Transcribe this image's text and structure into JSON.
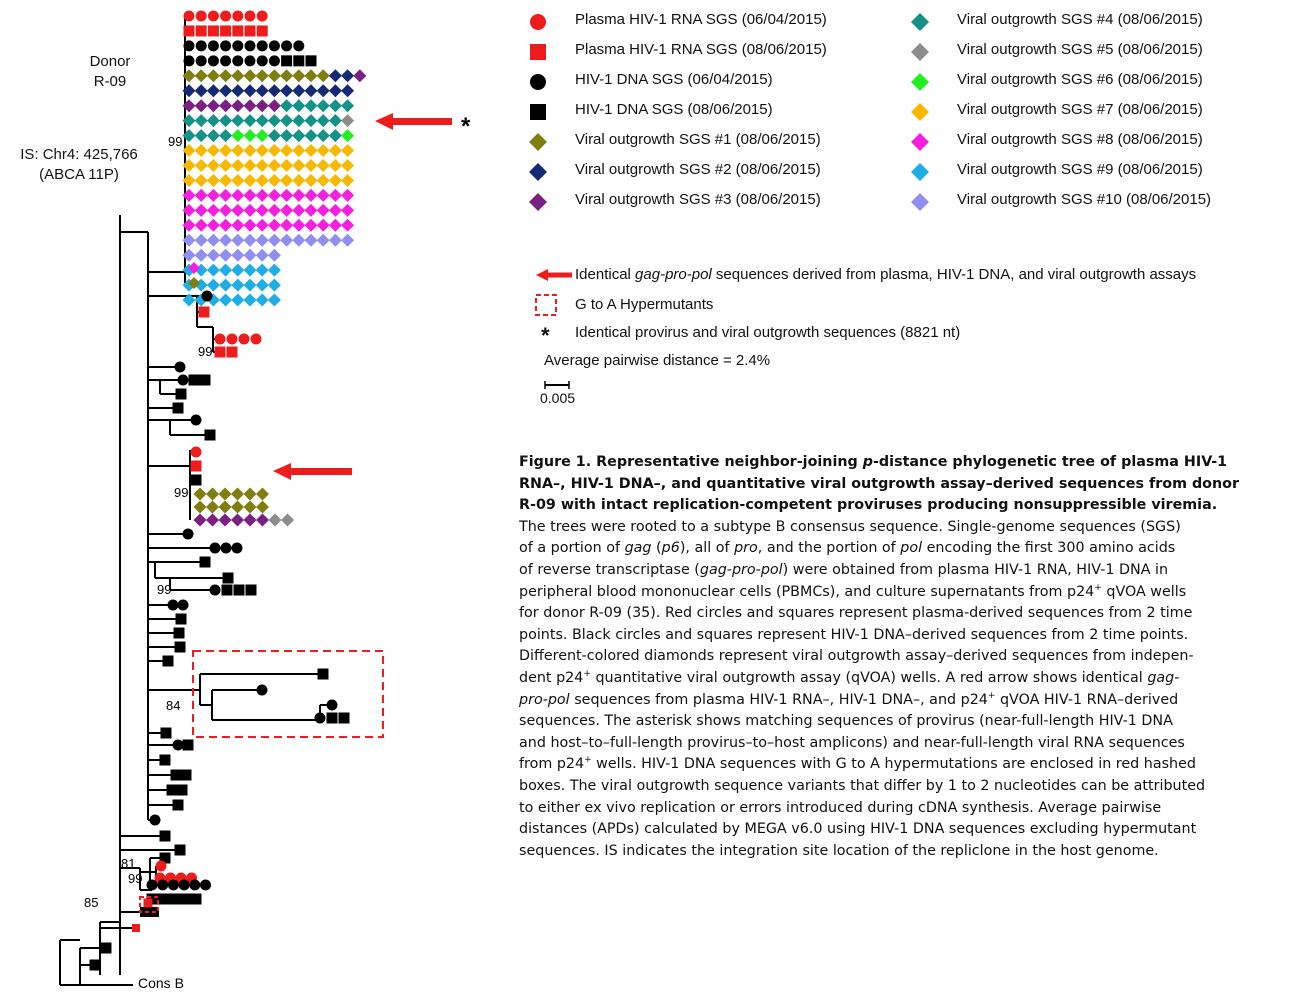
{
  "tree": {
    "donor_line1": "Donor",
    "donor_line2": "R-09",
    "is_line1": "IS: Chr4: 425,766",
    "is_line2": "(ABCA 11P)",
    "outgroup_label": "Cons B",
    "asterisk": "*",
    "bootstraps": [
      "99",
      "99",
      "99",
      "99",
      "84",
      "81",
      "99",
      "85"
    ]
  },
  "legend": {
    "colors": {
      "red": "#ee1c1c",
      "black": "#000000",
      "olive": "#7f7f0f",
      "navy": "#142a74",
      "purple": "#7b1f83",
      "teal": "#139387",
      "gray": "#8c8c8c",
      "green": "#22ee22",
      "orange": "#f8b800",
      "magenta": "#f41fdf",
      "cyan": "#1eaee6",
      "lavender": "#8f8ff2"
    },
    "items": [
      {
        "label": "Plasma HIV-1 RNA SGS (06/04/2015)",
        "symbol": "circle",
        "color": "#ee1c1c"
      },
      {
        "label": "Plasma HIV-1 RNA SGS (08/06/2015)",
        "symbol": "square",
        "color": "#ee1c1c"
      },
      {
        "label": "HIV-1 DNA SGS (06/04/2015)",
        "symbol": "circle",
        "color": "#000000"
      },
      {
        "label": "HIV-1 DNA SGS (08/06/2015)",
        "symbol": "square",
        "color": "#000000"
      },
      {
        "label": "Viral outgrowth SGS #1 (08/06/2015)",
        "symbol": "diamond",
        "color": "#7f7f0f"
      },
      {
        "label": "Viral outgrowth SGS #2 (08/06/2015)",
        "symbol": "diamond",
        "color": "#142a74"
      },
      {
        "label": "Viral outgrowth SGS #3 (08/06/2015)",
        "symbol": "diamond",
        "color": "#7b1f83"
      },
      {
        "label": "Viral outgrowth SGS #4 (08/06/2015)",
        "symbol": "diamond",
        "color": "#139387"
      },
      {
        "label": "Viral outgrowth SGS #5 (08/06/2015)",
        "symbol": "diamond",
        "color": "#8c8c8c"
      },
      {
        "label": "Viral outgrowth SGS #6 (08/06/2015)",
        "symbol": "diamond",
        "color": "#22ee22"
      },
      {
        "label": "Viral outgrowth SGS #7 (08/06/2015)",
        "symbol": "diamond",
        "color": "#f8b800"
      },
      {
        "label": "Viral outgrowth SGS #8 (08/06/2015)",
        "symbol": "diamond",
        "color": "#f41fdf"
      },
      {
        "label": "Viral outgrowth SGS #9 (08/06/2015)",
        "symbol": "diamond",
        "color": "#1eaee6"
      },
      {
        "label": "Viral outgrowth SGS #10 (08/06/2015)",
        "symbol": "diamond",
        "color": "#8f8ff2"
      }
    ],
    "arrow_text_1": "Identical ",
    "arrow_text_italic": "gag-pro-pol",
    "arrow_text_2": " sequences derived from plasma, HIV-1 DNA, and viral outgrowth assays",
    "hypermutant_text": "G to A Hypermutants",
    "asterisk_text": "Identical provirus and viral outgrowth sequences (8821 nt)",
    "apd_text": "Average pairwise distance = 2.4%",
    "scale_label": "0.005"
  },
  "caption": {
    "title_1": "Figure 1. Representative neighbor-joining ",
    "title_italic": "p",
    "title_2": "-distance phylogenetic tree of plasma HIV-1",
    "title_line2": "RNA–, HIV-1 DNA–, and quantitative viral outgrowth assay–derived sequences from donor",
    "title_line3": "R-09 with intact replication-competent proviruses producing nonsuppressible viremia.",
    "l1": "The trees were rooted to a subtype B consensus sequence. Single-genome sequences (SGS)",
    "l2a": "of a portion of ",
    "l2b": "gag",
    "l2c": " (",
    "l2d": "p6",
    "l2e": "), all of ",
    "l2f": "pro",
    "l2g": ", and the portion of ",
    "l2h": "pol",
    "l2i": " encoding the first 300 amino acids",
    "l3a": "of reverse transcriptase (",
    "l3b": "gag-pro-pol",
    "l3c": ") were obtained from plasma HIV-1 RNA, HIV-1 DNA in",
    "l4a": "peripheral blood mononuclear cells (PBMCs), and culture supernatants from p24",
    "l4sup": "+",
    "l4b": " qVOA wells",
    "l5": "for donor R-09 (35). Red circles and squares represent plasma-derived sequences from 2 time",
    "l6": "points. Black circles and squares represent HIV-1 DNA–derived sequences from 2 time points.",
    "l7": "Different-colored diamonds represent viral outgrowth assay–derived sequences from indepen-",
    "l8a": "dent p24",
    "l8sup": "+",
    "l8b": " quantitative viral outgrowth assay (qVOA) wells. A red arrow shows identical ",
    "l8c": "gag-",
    "l9a": "pro-pol",
    "l9b": " sequences from plasma HIV-1 RNA–, HIV-1 DNA–, and p24",
    "l9sup": "+",
    "l9c": " qVOA HIV-1 RNA–derived",
    "l10": "sequences. The asterisk shows matching sequences of provirus (near-full-length HIV-1 DNA",
    "l11": "and host–to–full-length provirus–to–host amplicons) and near-full-length viral RNA sequences",
    "l12a": "from p24",
    "l12sup": "+",
    "l12b": " wells. HIV-1 DNA sequences with G to A hypermutations are enclosed in red hashed",
    "l13": "boxes. The viral outgrowth sequence variants that differ by 1 to 2 nucleotides can be attributed",
    "l14": "to either ex vivo replication or errors introduced during cDNA synthesis. Average pairwise",
    "l15": "distances (APDs) calculated by MEGA v6.0 using HIV-1 DNA sequences excluding hypermutant",
    "l16": "sequences. IS indicates the integration site location of the repliclone in the host genome."
  }
}
